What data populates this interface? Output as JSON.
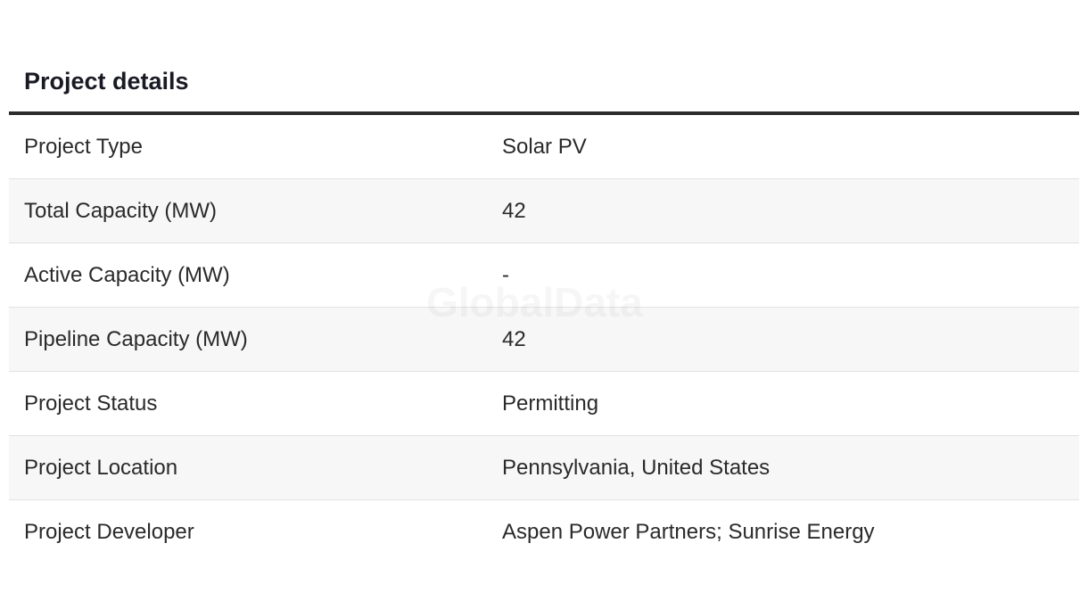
{
  "header": {
    "title": "Project details"
  },
  "table": {
    "rows": [
      [
        "Project Type",
        "Solar PV"
      ],
      [
        "Total Capacity (MW)",
        42
      ],
      [
        "Active Capacity (MW)",
        "-"
      ],
      [
        "Pipeline Capacity (MW)",
        42
      ],
      [
        "Project Status",
        "Permitting"
      ],
      [
        "Project Location",
        "Pennsylvania, United States"
      ],
      [
        "Project Developer",
        "Aspen Power Partners; Sunrise Energy"
      ]
    ]
  },
  "watermark": "GlobalData"
}
